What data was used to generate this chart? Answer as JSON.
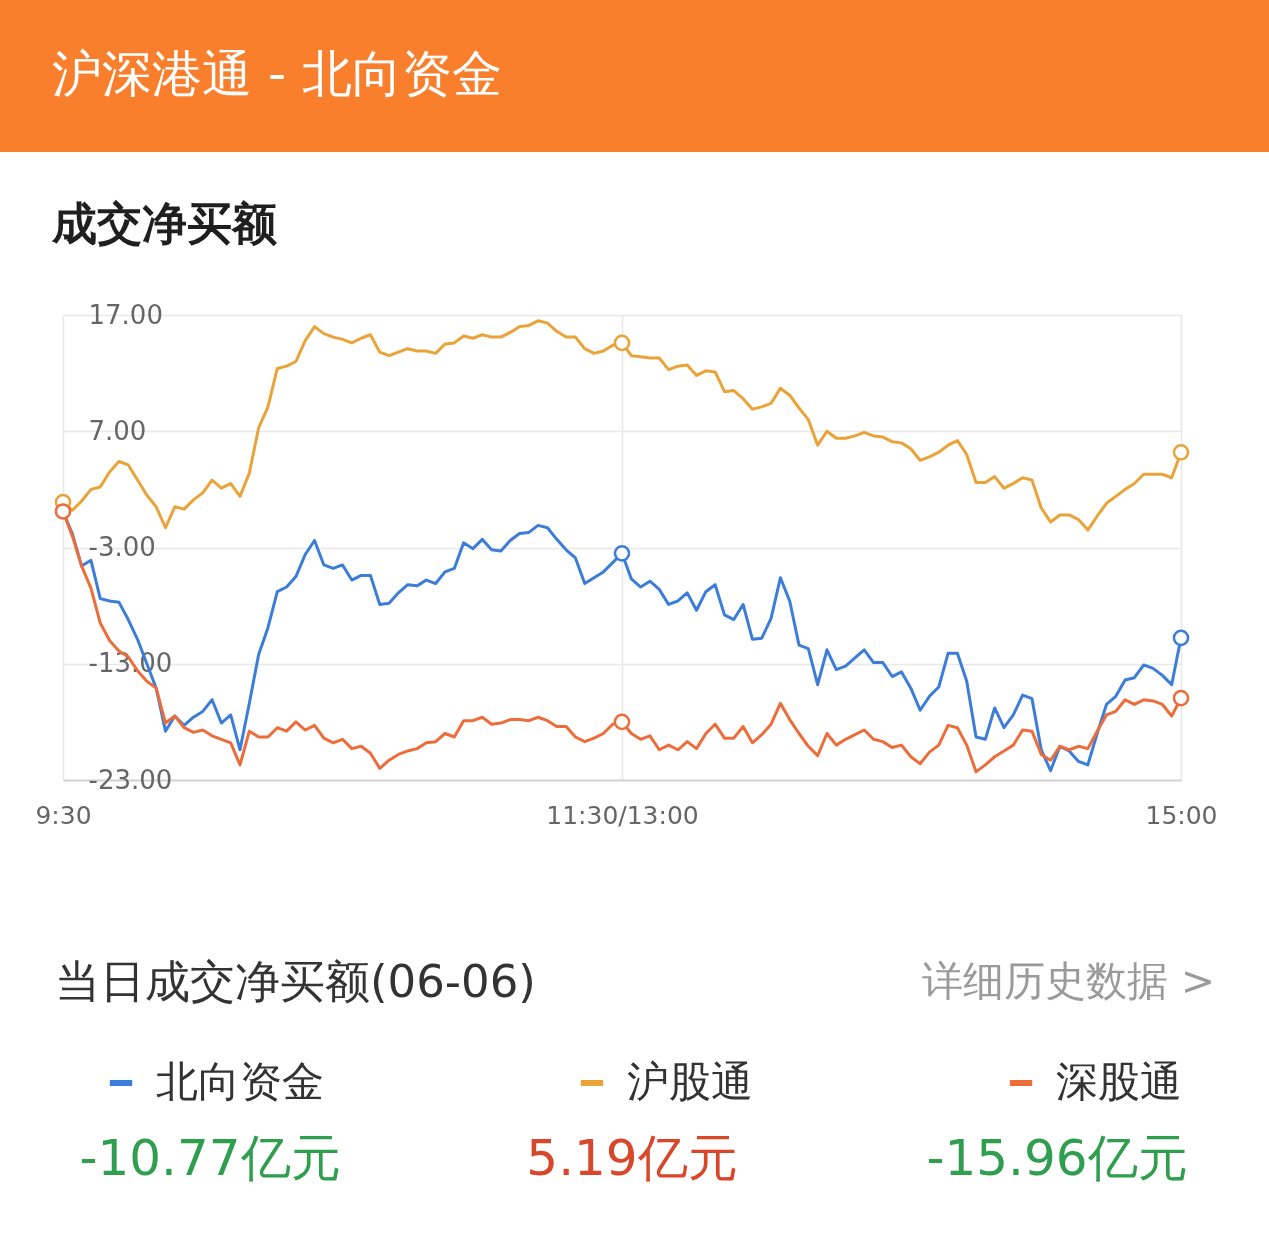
{
  "chart_data": {
    "type": "line",
    "title": "沪深港通 - 北向资金",
    "subtitle": "成交净买额",
    "categories": [
      "9:30",
      null,
      null,
      null,
      null,
      null,
      null,
      null,
      null,
      null,
      null,
      null,
      null,
      null,
      null,
      null,
      null,
      null,
      null,
      null,
      null,
      null,
      null,
      null,
      null,
      null,
      null,
      null,
      null,
      null,
      null,
      null,
      null,
      null,
      null,
      null,
      null,
      null,
      null,
      null,
      null,
      null,
      null,
      null,
      null,
      null,
      null,
      null,
      null,
      null,
      null,
      null,
      null,
      null,
      null,
      null,
      null,
      null,
      null,
      null,
      "11:30/13:00",
      null,
      null,
      null,
      null,
      null,
      null,
      null,
      null,
      null,
      null,
      null,
      null,
      null,
      null,
      null,
      null,
      null,
      null,
      null,
      null,
      null,
      null,
      null,
      null,
      null,
      null,
      null,
      null,
      null,
      null,
      null,
      null,
      null,
      null,
      null,
      null,
      null,
      null,
      null,
      null,
      null,
      null,
      null,
      null,
      null,
      null,
      null,
      null,
      null,
      null,
      null,
      null,
      null,
      null,
      null,
      null,
      null,
      null,
      null,
      "15:00"
    ],
    "ylim": [
      -23,
      17
    ],
    "yticks": [
      {
        "value": -23,
        "label": "-23.00"
      },
      {
        "value": -13,
        "label": "-13.00"
      },
      {
        "value": -3,
        "label": "-3.00"
      },
      {
        "value": 7,
        "label": "7.00"
      },
      {
        "value": 17,
        "label": "17.00"
      }
    ],
    "grid": true,
    "legend": "bottom",
    "series": [
      {
        "name": "北向资金",
        "color": "#3b7dd8",
        "values": [
          0.1,
          -1.8,
          -4.6,
          -4.1,
          -7.4,
          -7.6,
          -7.7,
          -9.2,
          -10.9,
          -13.0,
          -15.1,
          -18.8,
          -17.5,
          -18.3,
          -17.6,
          -17.1,
          -16.1,
          -18.1,
          -17.4,
          -20.4,
          -16.4,
          -12.2,
          -9.9,
          -6.8,
          -6.4,
          -5.5,
          -3.6,
          -2.4,
          -4.5,
          -4.8,
          -4.5,
          -5.8,
          -5.4,
          -5.4,
          -7.9,
          -7.8,
          -6.9,
          -6.2,
          -6.3,
          -5.8,
          -6.1,
          -5.1,
          -4.8,
          -2.6,
          -3.1,
          -2.3,
          -3.2,
          -3.3,
          -2.4,
          -1.8,
          -1.7,
          -1.1,
          -1.3,
          -2.3,
          -3.2,
          -3.9,
          -6.1,
          -5.6,
          -5.1,
          -4.3,
          -3.5,
          -5.7,
          -6.4,
          -5.9,
          -6.6,
          -7.9,
          -7.6,
          -6.9,
          -8.4,
          -6.8,
          -6.2,
          -8.8,
          -9.2,
          -7.9,
          -10.9,
          -10.8,
          -9.1,
          -5.6,
          -7.6,
          -11.4,
          -11.7,
          -14.8,
          -11.8,
          -13.5,
          -13.2,
          -12.5,
          -11.8,
          -12.9,
          -12.9,
          -14.1,
          -13.7,
          -15.1,
          -17.0,
          -15.8,
          -15.0,
          -12.1,
          -12.1,
          -14.5,
          -19.3,
          -19.5,
          -16.8,
          -18.5,
          -17.4,
          -15.7,
          -16.0,
          -20.4,
          -22.2,
          -20.1,
          -20.5,
          -21.4,
          -21.7,
          -19.0,
          -16.5,
          -15.8,
          -14.4,
          -14.2,
          -13.1,
          -13.4,
          -14.0,
          -14.8,
          -10.77
        ]
      },
      {
        "name": "沪股通",
        "color": "#eaa338",
        "values": [
          0.9,
          0.2,
          1.0,
          2.0,
          2.2,
          3.5,
          4.4,
          4.1,
          2.8,
          1.5,
          0.5,
          -1.3,
          0.5,
          0.3,
          1.1,
          1.7,
          2.8,
          2.1,
          2.5,
          1.4,
          3.4,
          7.3,
          9.1,
          12.4,
          12.6,
          13.0,
          14.8,
          16.0,
          15.4,
          15.1,
          14.9,
          14.6,
          15.0,
          15.3,
          13.8,
          13.5,
          13.8,
          14.1,
          13.9,
          13.9,
          13.7,
          14.5,
          14.6,
          15.2,
          15.0,
          15.3,
          15.1,
          15.1,
          15.5,
          16.0,
          16.1,
          16.5,
          16.3,
          15.6,
          15.1,
          15.1,
          14.1,
          13.7,
          13.9,
          14.4,
          14.6,
          13.5,
          13.4,
          13.3,
          13.3,
          12.3,
          12.6,
          12.7,
          11.8,
          12.2,
          12.1,
          10.4,
          10.5,
          9.8,
          8.9,
          9.1,
          9.4,
          10.7,
          10.1,
          9.0,
          8.0,
          5.8,
          7.0,
          6.4,
          6.4,
          6.6,
          6.9,
          6.6,
          6.5,
          6.1,
          6.0,
          5.5,
          4.5,
          4.8,
          5.2,
          5.8,
          6.2,
          5.0,
          2.6,
          2.6,
          3.1,
          2.1,
          2.5,
          3.0,
          2.8,
          0.4,
          -0.8,
          -0.2,
          -0.2,
          -0.6,
          -1.5,
          -0.3,
          0.8,
          1.4,
          2.0,
          2.5,
          3.3,
          3.3,
          3.3,
          3.0,
          5.19
        ]
      },
      {
        "name": "深股通",
        "color": "#ec6d3a",
        "values": [
          0.1,
          -2.0,
          -4.6,
          -6.5,
          -9.5,
          -11.0,
          -11.9,
          -12.4,
          -13.6,
          -14.5,
          -15.1,
          -18.1,
          -17.5,
          -18.5,
          -18.9,
          -18.7,
          -19.2,
          -19.5,
          -19.8,
          -21.7,
          -18.8,
          -19.3,
          -19.3,
          -18.5,
          -18.8,
          -18.0,
          -18.7,
          -18.3,
          -19.4,
          -19.8,
          -19.5,
          -20.3,
          -20.1,
          -20.7,
          -22.0,
          -21.3,
          -20.8,
          -20.5,
          -20.3,
          -19.8,
          -19.7,
          -19.0,
          -19.3,
          -17.9,
          -17.9,
          -17.6,
          -18.2,
          -18.1,
          -17.8,
          -17.8,
          -17.9,
          -17.6,
          -17.9,
          -18.4,
          -18.4,
          -19.3,
          -19.7,
          -19.4,
          -19.0,
          -18.2,
          -18.0,
          -19.0,
          -19.5,
          -19.2,
          -20.4,
          -20.0,
          -20.4,
          -19.7,
          -20.3,
          -19.0,
          -18.2,
          -19.4,
          -19.4,
          -18.4,
          -19.8,
          -19.1,
          -18.2,
          -16.4,
          -17.8,
          -19.0,
          -20.1,
          -20.9,
          -19.0,
          -20.0,
          -19.5,
          -19.1,
          -18.7,
          -19.5,
          -19.7,
          -20.2,
          -20.0,
          -21.0,
          -21.6,
          -20.6,
          -20.0,
          -18.3,
          -18.5,
          -20.0,
          -22.3,
          -21.7,
          -21.0,
          -20.5,
          -20.0,
          -18.7,
          -18.8,
          -20.8,
          -21.3,
          -20.1,
          -20.4,
          -20.1,
          -20.3,
          -18.8,
          -17.4,
          -17.1,
          -16.1,
          -16.5,
          -16.1,
          -16.2,
          -16.5,
          -17.5,
          -15.96
        ]
      },
      {
        "type": "scatter",
        "marker": "circle",
        "color": "#3b7dd8",
        "values": [
          null,
          null,
          null,
          null,
          null,
          null,
          null,
          null,
          null,
          null,
          null,
          null,
          null,
          null,
          null,
          null,
          null,
          null,
          null,
          null,
          null,
          null,
          null,
          null,
          null,
          null,
          null,
          null,
          null,
          null,
          null,
          null,
          null,
          null,
          null,
          null,
          null,
          null,
          null,
          null,
          null,
          null,
          null,
          null,
          null,
          null,
          null,
          null,
          null,
          null,
          null,
          null,
          null,
          null,
          null,
          null,
          null,
          null,
          null,
          null,
          -3.5,
          null,
          null,
          null,
          null,
          null,
          null,
          null,
          null,
          null,
          null,
          null,
          null,
          null,
          null,
          null,
          null,
          null,
          null,
          null,
          null,
          null,
          null,
          null,
          null,
          null,
          null,
          null,
          null,
          null,
          null,
          null,
          null,
          null,
          null,
          null,
          null,
          null,
          null,
          null,
          null,
          null,
          null,
          null,
          null,
          null,
          null,
          null,
          null,
          null,
          null,
          null,
          null,
          null,
          null,
          null,
          null,
          null,
          null,
          null,
          -10.77
        ]
      },
      {
        "type": "scatter",
        "marker": "circle",
        "color": "#eaa338",
        "values": [
          0.9,
          null,
          null,
          null,
          null,
          null,
          null,
          null,
          null,
          null,
          null,
          null,
          null,
          null,
          null,
          null,
          null,
          null,
          null,
          null,
          null,
          null,
          null,
          null,
          null,
          null,
          null,
          null,
          null,
          null,
          null,
          null,
          null,
          null,
          null,
          null,
          null,
          null,
          null,
          null,
          null,
          null,
          null,
          null,
          null,
          null,
          null,
          null,
          null,
          null,
          null,
          null,
          null,
          null,
          null,
          null,
          null,
          null,
          null,
          null,
          14.6,
          null,
          null,
          null,
          null,
          null,
          null,
          null,
          null,
          null,
          null,
          null,
          null,
          null,
          null,
          null,
          null,
          null,
          null,
          null,
          null,
          null,
          null,
          null,
          null,
          null,
          null,
          null,
          null,
          null,
          null,
          null,
          null,
          null,
          null,
          null,
          null,
          null,
          null,
          null,
          null,
          null,
          null,
          null,
          null,
          null,
          null,
          null,
          null,
          null,
          null,
          null,
          null,
          null,
          null,
          null,
          null,
          null,
          null,
          null,
          5.19
        ]
      },
      {
        "type": "scatter",
        "marker": "circle",
        "color": "#ec6d3a",
        "values": [
          0.1,
          null,
          null,
          null,
          null,
          null,
          null,
          null,
          null,
          null,
          null,
          null,
          null,
          null,
          null,
          null,
          null,
          null,
          null,
          null,
          null,
          null,
          null,
          null,
          null,
          null,
          null,
          null,
          null,
          null,
          null,
          null,
          null,
          null,
          null,
          null,
          null,
          null,
          null,
          null,
          null,
          null,
          null,
          null,
          null,
          null,
          null,
          null,
          null,
          null,
          null,
          null,
          null,
          null,
          null,
          null,
          null,
          null,
          null,
          null,
          -18.0,
          null,
          null,
          null,
          null,
          null,
          null,
          null,
          null,
          null,
          null,
          null,
          null,
          null,
          null,
          null,
          null,
          null,
          null,
          null,
          null,
          null,
          null,
          null,
          null,
          null,
          null,
          null,
          null,
          null,
          null,
          null,
          null,
          null,
          null,
          null,
          null,
          null,
          null,
          null,
          null,
          null,
          null,
          null,
          null,
          null,
          null,
          null,
          null,
          null,
          null,
          null,
          null,
          null,
          null,
          null,
          null,
          null,
          null,
          null,
          -15.96
        ]
      }
    ],
    "annotations": [
      "当日成交净买额(06-06)",
      "详细历史数据 >",
      "-10.77亿元",
      "5.19亿元",
      "-15.96亿元"
    ]
  }
}
